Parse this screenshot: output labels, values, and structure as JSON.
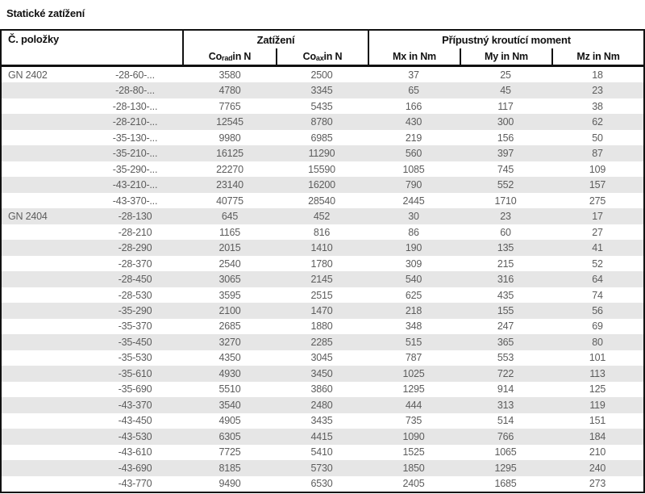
{
  "title": "Statické zatížení",
  "colors": {
    "border": "#111111",
    "stripe": "#e6e6e6",
    "body_text": "#5c5c5c",
    "header_text": "#111111"
  },
  "table": {
    "item_col_header": "Č. položky",
    "group_headers": {
      "load": "Zatížení",
      "torque": "Přípustný kroutící moment"
    },
    "sub_headers": [
      {
        "main": "Co",
        "sub": "rad",
        "unit": " in N"
      },
      {
        "main": "Co",
        "sub": "ax",
        "unit": " in N"
      },
      {
        "main": "Mx in Nm",
        "sub": "",
        "unit": ""
      },
      {
        "main": "My in Nm",
        "sub": "",
        "unit": ""
      },
      {
        "main": "Mz in Nm",
        "sub": "",
        "unit": ""
      }
    ],
    "rows": [
      {
        "series": "GN 2402",
        "suffix": "-28-60-...",
        "values": [
          3580,
          2500,
          37,
          25,
          18
        ]
      },
      {
        "series": "",
        "suffix": "-28-80-...",
        "values": [
          4780,
          3345,
          65,
          45,
          23
        ]
      },
      {
        "series": "",
        "suffix": "-28-130-...",
        "values": [
          7765,
          5435,
          166,
          117,
          38
        ]
      },
      {
        "series": "",
        "suffix": "-28-210-...",
        "values": [
          12545,
          8780,
          430,
          300,
          62
        ]
      },
      {
        "series": "",
        "suffix": "-35-130-...",
        "values": [
          9980,
          6985,
          219,
          156,
          50
        ]
      },
      {
        "series": "",
        "suffix": "-35-210-...",
        "values": [
          16125,
          11290,
          560,
          397,
          87
        ]
      },
      {
        "series": "",
        "suffix": "-35-290-...",
        "values": [
          22270,
          15590,
          1085,
          745,
          109
        ]
      },
      {
        "series": "",
        "suffix": "-43-210-...",
        "values": [
          23140,
          16200,
          790,
          552,
          157
        ]
      },
      {
        "series": "",
        "suffix": "-43-370-...",
        "values": [
          40775,
          28540,
          2445,
          1710,
          275
        ]
      },
      {
        "series": "GN 2404",
        "suffix": "-28-130",
        "values": [
          645,
          452,
          30,
          23,
          17
        ]
      },
      {
        "series": "",
        "suffix": "-28-210",
        "values": [
          1165,
          816,
          86,
          60,
          27
        ]
      },
      {
        "series": "",
        "suffix": "-28-290",
        "values": [
          2015,
          1410,
          190,
          135,
          41
        ]
      },
      {
        "series": "",
        "suffix": "-28-370",
        "values": [
          2540,
          1780,
          309,
          215,
          52
        ]
      },
      {
        "series": "",
        "suffix": "-28-450",
        "values": [
          3065,
          2145,
          540,
          316,
          64
        ]
      },
      {
        "series": "",
        "suffix": "-28-530",
        "values": [
          3595,
          2515,
          625,
          435,
          74
        ]
      },
      {
        "series": "",
        "suffix": "-35-290",
        "values": [
          2100,
          1470,
          218,
          155,
          56
        ]
      },
      {
        "series": "",
        "suffix": "-35-370",
        "values": [
          2685,
          1880,
          348,
          247,
          69
        ]
      },
      {
        "series": "",
        "suffix": "-35-450",
        "values": [
          3270,
          2285,
          515,
          365,
          80
        ]
      },
      {
        "series": "",
        "suffix": "-35-530",
        "values": [
          4350,
          3045,
          787,
          553,
          101
        ]
      },
      {
        "series": "",
        "suffix": "-35-610",
        "values": [
          4930,
          3450,
          1025,
          722,
          113
        ]
      },
      {
        "series": "",
        "suffix": "-35-690",
        "values": [
          5510,
          3860,
          1295,
          914,
          125
        ]
      },
      {
        "series": "",
        "suffix": "-43-370",
        "values": [
          3540,
          2480,
          444,
          313,
          119
        ]
      },
      {
        "series": "",
        "suffix": "-43-450",
        "values": [
          4905,
          3435,
          735,
          514,
          151
        ]
      },
      {
        "series": "",
        "suffix": "-43-530",
        "values": [
          6305,
          4415,
          1090,
          766,
          184
        ]
      },
      {
        "series": "",
        "suffix": "-43-610",
        "values": [
          7725,
          5410,
          1525,
          1065,
          210
        ]
      },
      {
        "series": "",
        "suffix": "-43-690",
        "values": [
          8185,
          5730,
          1850,
          1295,
          240
        ]
      },
      {
        "series": "",
        "suffix": "-43-770",
        "values": [
          9490,
          6530,
          2405,
          1685,
          273
        ]
      }
    ]
  }
}
